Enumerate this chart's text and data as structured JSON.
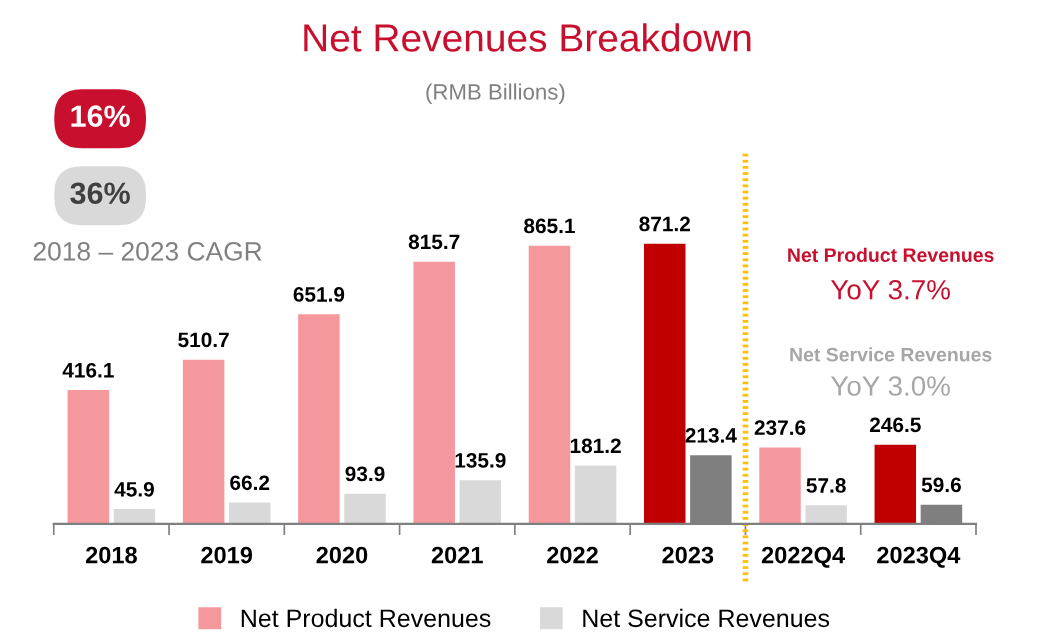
{
  "chart_data": {
    "type": "bar",
    "title": "Net Revenues Breakdown",
    "subtitle": "(RMB Billions)",
    "categories": [
      "2018",
      "2019",
      "2020",
      "2021",
      "2022",
      "2023",
      "2022Q4",
      "2023Q4"
    ],
    "series": [
      {
        "name": "Net Product Revenues",
        "color": "#f4989e",
        "colors": [
          "#f4989e",
          "#f4989e",
          "#f4989e",
          "#f4989e",
          "#f4989e",
          "#c00000",
          "#f4989e",
          "#c00000"
        ],
        "values": [
          416.1,
          510.7,
          651.9,
          815.7,
          865.1,
          871.2,
          237.6,
          246.5
        ]
      },
      {
        "name": "Net Service Revenues",
        "color": "#d9d9d9",
        "colors": [
          "#d9d9d9",
          "#d9d9d9",
          "#d9d9d9",
          "#d9d9d9",
          "#d9d9d9",
          "#7f7f7f",
          "#d9d9d9",
          "#7f7f7f"
        ],
        "values": [
          45.9,
          66.2,
          93.9,
          135.9,
          181.2,
          213.4,
          57.8,
          59.6
        ]
      }
    ],
    "data_labels": true,
    "legend": "bottom",
    "grid": false,
    "tick_labels": "x",
    "annotations": [
      "16%",
      "36%",
      "2018 – 2023 CAGR",
      "Net Product Revenues",
      "YoY 3.7%",
      "Net Service Revenues",
      "YoY 3.0%"
    ]
  }
}
